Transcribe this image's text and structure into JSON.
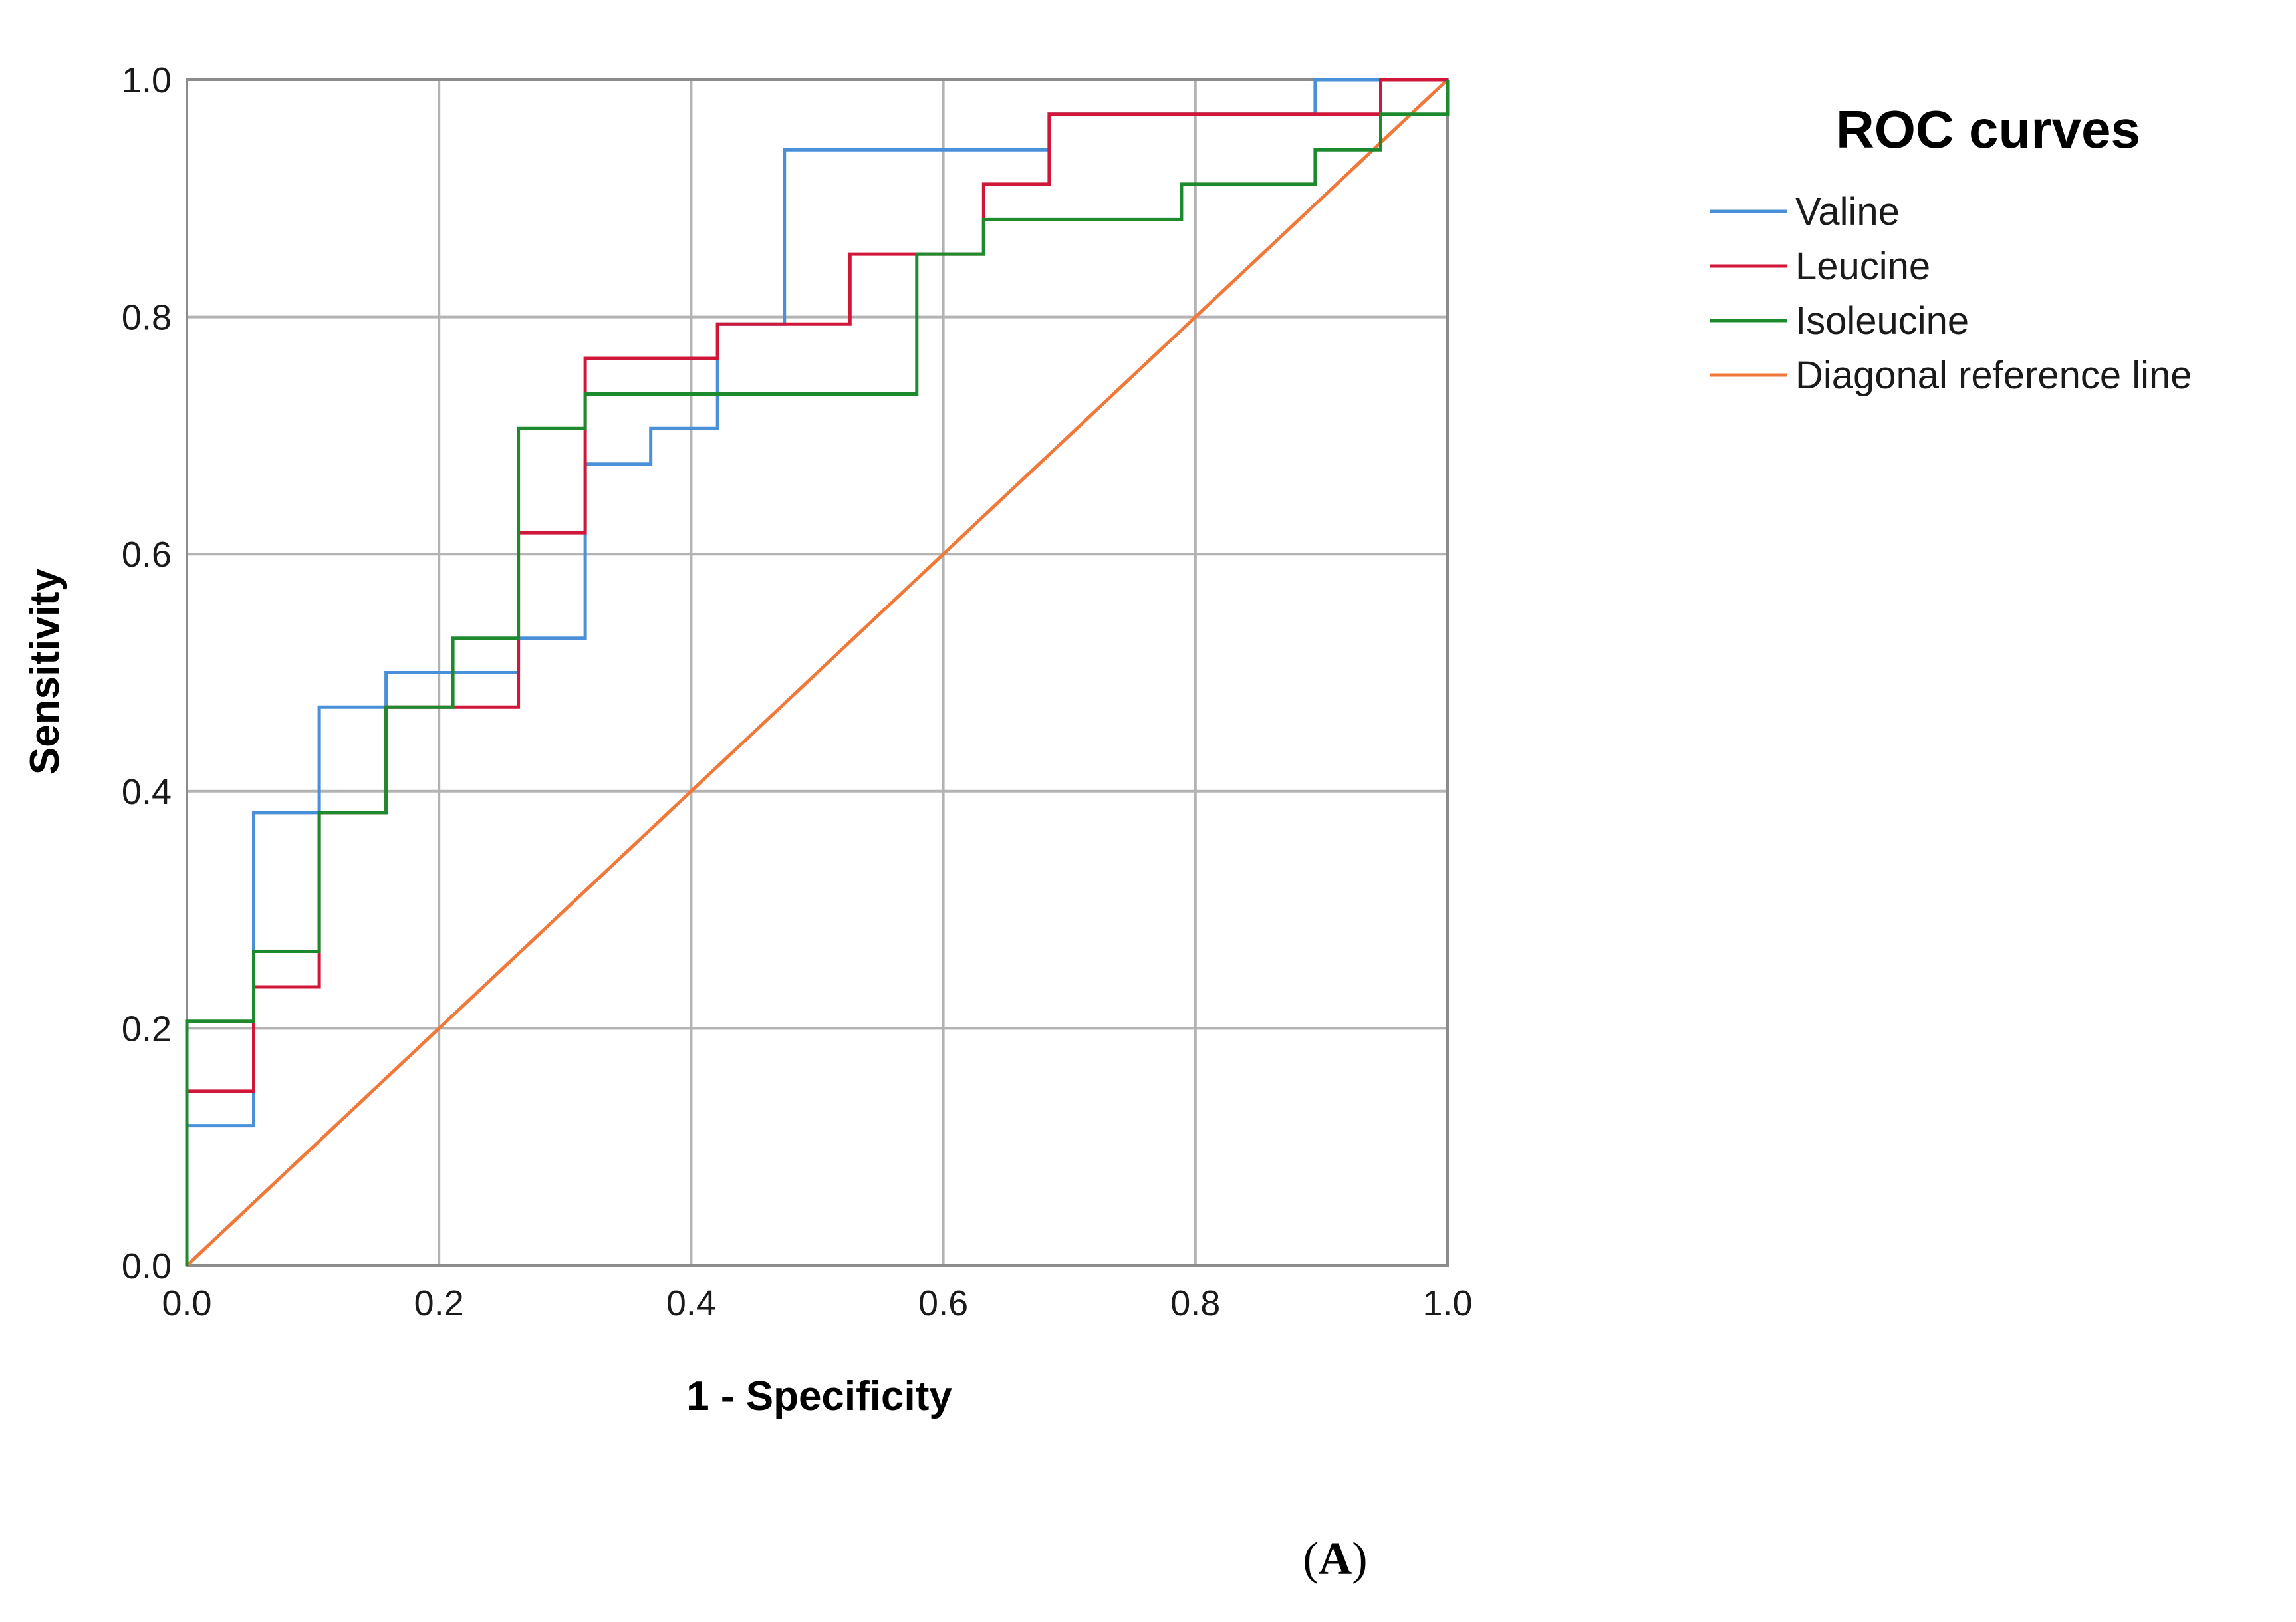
{
  "chart_data": {
    "type": "line",
    "subtype": "roc-step",
    "xlabel": "1 - Specificity",
    "ylabel": "Sensitivity",
    "xlim": [
      0,
      1
    ],
    "ylim": [
      0,
      1
    ],
    "x_ticks": [
      "0.0",
      "0.2",
      "0.4",
      "0.6",
      "0.8",
      "1.0"
    ],
    "y_ticks": [
      "0.0",
      "0.2",
      "0.4",
      "0.6",
      "0.8",
      "1.0"
    ],
    "x_tick_values": [
      0,
      0.2,
      0.4,
      0.6,
      0.8,
      1.0
    ],
    "y_tick_values": [
      0,
      0.2,
      0.4,
      0.6,
      0.8,
      1.0
    ],
    "grid": true,
    "legend": {
      "title": "ROC curves",
      "position": "right"
    },
    "series": [
      {
        "name": "Valine",
        "color": "#4a90d9",
        "points": [
          [
            0,
            0
          ],
          [
            0,
            0.118
          ],
          [
            0.053,
            0.118
          ],
          [
            0.053,
            0.382
          ],
          [
            0.105,
            0.382
          ],
          [
            0.105,
            0.471
          ],
          [
            0.158,
            0.471
          ],
          [
            0.158,
            0.5
          ],
          [
            0.263,
            0.5
          ],
          [
            0.263,
            0.529
          ],
          [
            0.316,
            0.529
          ],
          [
            0.316,
            0.676
          ],
          [
            0.368,
            0.676
          ],
          [
            0.368,
            0.706
          ],
          [
            0.421,
            0.706
          ],
          [
            0.421,
            0.794
          ],
          [
            0.474,
            0.794
          ],
          [
            0.474,
            0.941
          ],
          [
            0.684,
            0.941
          ],
          [
            0.684,
            0.971
          ],
          [
            0.895,
            0.971
          ],
          [
            0.895,
            1.0
          ],
          [
            1.0,
            1.0
          ]
        ]
      },
      {
        "name": "Leucine",
        "color": "#d0173a",
        "points": [
          [
            0,
            0
          ],
          [
            0,
            0.147
          ],
          [
            0.053,
            0.147
          ],
          [
            0.053,
            0.235
          ],
          [
            0.105,
            0.235
          ],
          [
            0.105,
            0.382
          ],
          [
            0.158,
            0.382
          ],
          [
            0.158,
            0.471
          ],
          [
            0.263,
            0.471
          ],
          [
            0.263,
            0.618
          ],
          [
            0.316,
            0.618
          ],
          [
            0.316,
            0.765
          ],
          [
            0.421,
            0.765
          ],
          [
            0.421,
            0.794
          ],
          [
            0.526,
            0.794
          ],
          [
            0.526,
            0.853
          ],
          [
            0.632,
            0.853
          ],
          [
            0.632,
            0.912
          ],
          [
            0.684,
            0.912
          ],
          [
            0.684,
            0.971
          ],
          [
            0.947,
            0.971
          ],
          [
            0.947,
            1.0
          ],
          [
            1.0,
            1.0
          ]
        ]
      },
      {
        "name": "Isoleucine",
        "color": "#1e8a2e",
        "points": [
          [
            0,
            0
          ],
          [
            0,
            0.206
          ],
          [
            0.053,
            0.206
          ],
          [
            0.053,
            0.265
          ],
          [
            0.105,
            0.265
          ],
          [
            0.105,
            0.382
          ],
          [
            0.158,
            0.382
          ],
          [
            0.158,
            0.471
          ],
          [
            0.211,
            0.471
          ],
          [
            0.211,
            0.529
          ],
          [
            0.263,
            0.529
          ],
          [
            0.263,
            0.706
          ],
          [
            0.316,
            0.706
          ],
          [
            0.316,
            0.735
          ],
          [
            0.579,
            0.735
          ],
          [
            0.579,
            0.853
          ],
          [
            0.632,
            0.853
          ],
          [
            0.632,
            0.882
          ],
          [
            0.789,
            0.882
          ],
          [
            0.789,
            0.912
          ],
          [
            0.895,
            0.912
          ],
          [
            0.895,
            0.941
          ],
          [
            0.947,
            0.941
          ],
          [
            0.947,
            0.971
          ],
          [
            1.0,
            0.971
          ],
          [
            1.0,
            1.0
          ]
        ]
      },
      {
        "name": "Diagonal reference line",
        "color": "#f07838",
        "points": [
          [
            0,
            0
          ],
          [
            1,
            1
          ]
        ]
      }
    ]
  },
  "panel_label": {
    "open": "(",
    "letter": "A",
    "close": ")"
  },
  "colors": {
    "grid": "#b3b3b3",
    "axis": "#8c8c8c"
  }
}
